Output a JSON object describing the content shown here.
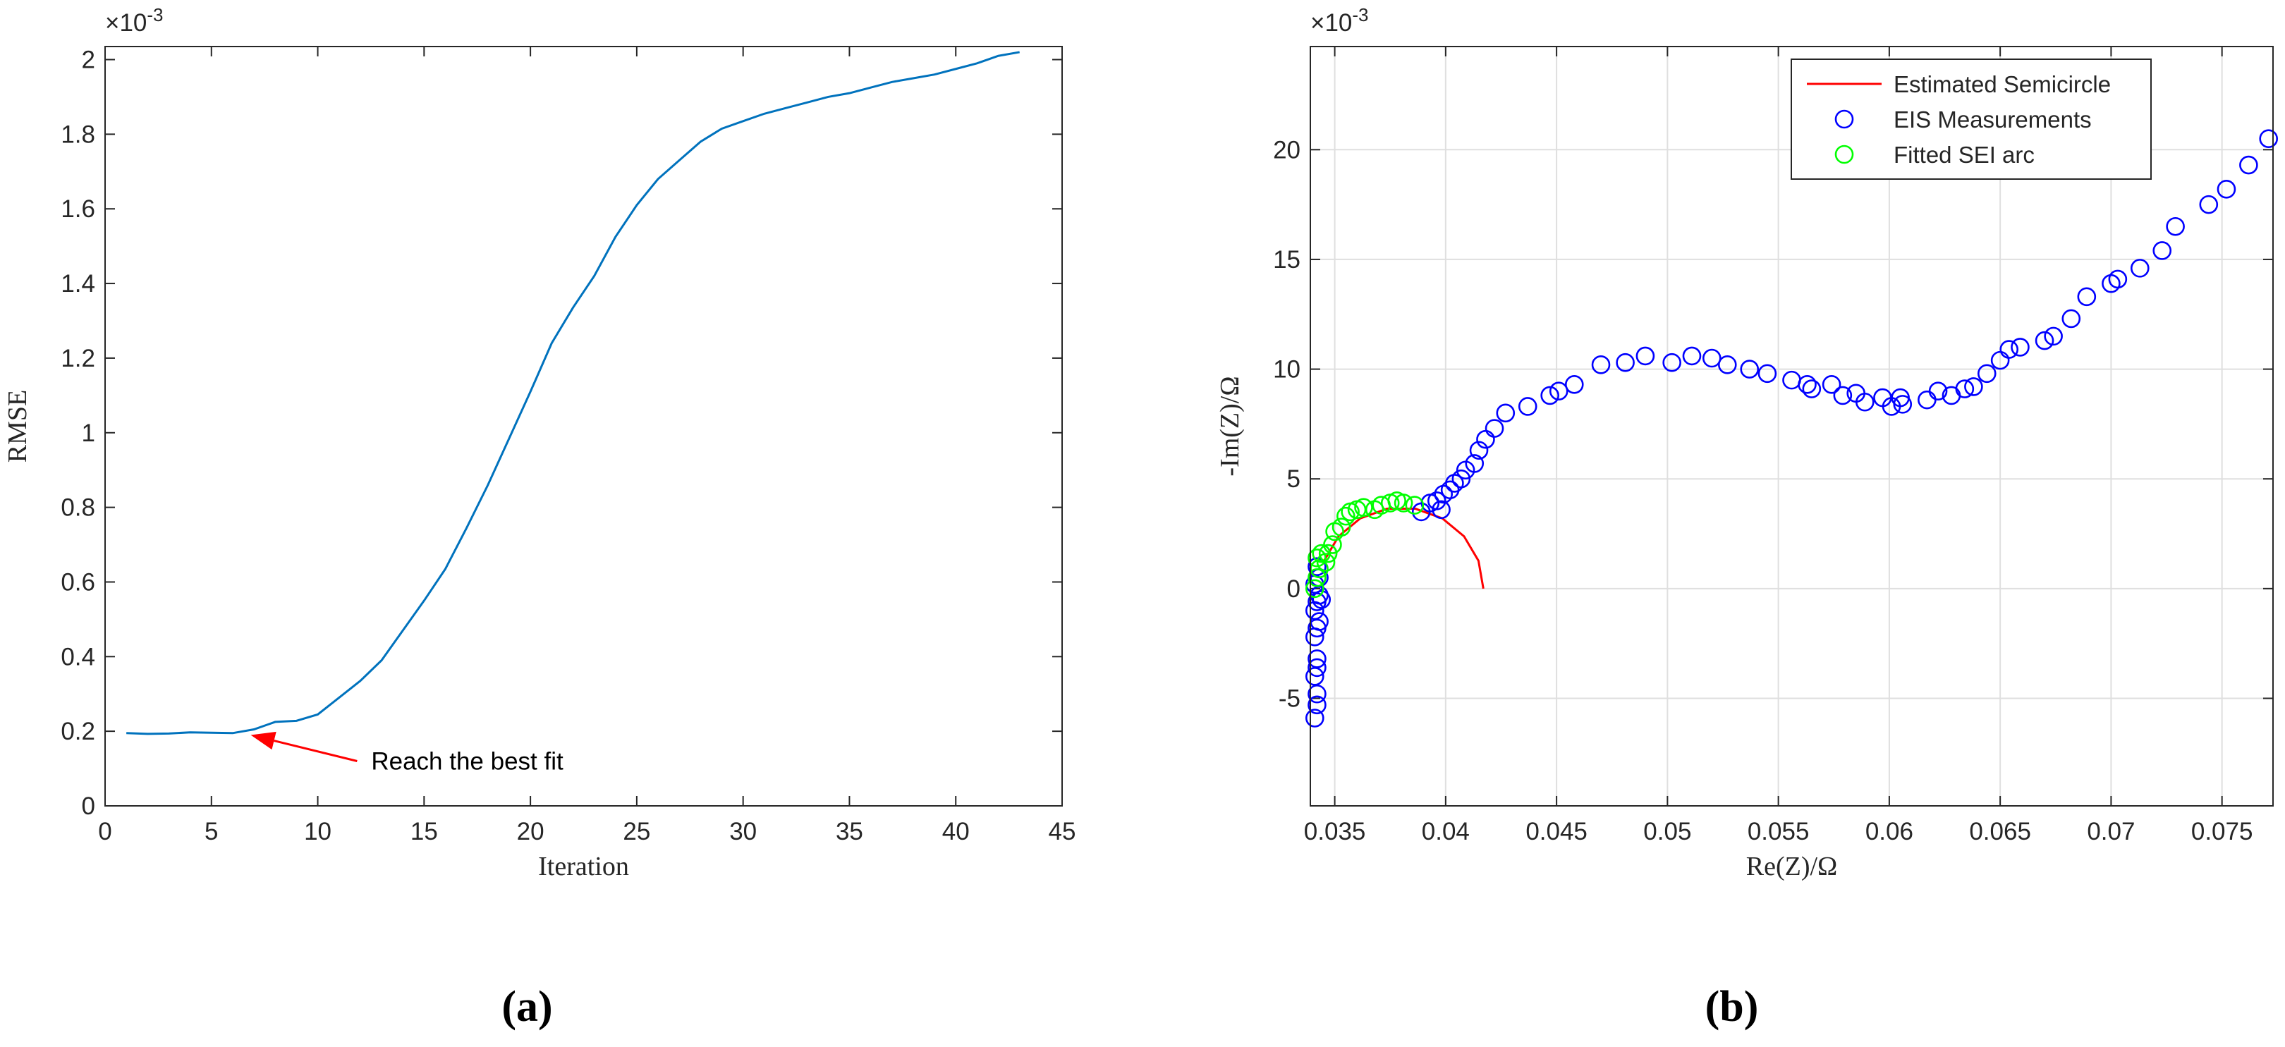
{
  "chart_data": [
    {
      "type": "line",
      "panel_label": "(a)",
      "x_label": "Iteration",
      "y_label": "RMSE",
      "y_exponent": {
        "base": "×10",
        "power": "-3"
      },
      "xlim": [
        0,
        45
      ],
      "xticks": [
        0,
        5,
        10,
        15,
        20,
        25,
        30,
        35,
        40,
        45
      ],
      "ylim": [
        0,
        2.035
      ],
      "yticks": [
        0,
        0.2,
        0.4,
        0.6,
        0.8,
        1,
        1.2,
        1.4,
        1.6,
        1.8,
        2
      ],
      "grid": false,
      "series": [
        {
          "mode": "line",
          "color": "#0072bd",
          "x": [
            1,
            2,
            3,
            4,
            5,
            6,
            7,
            8,
            9,
            10,
            11,
            12,
            13,
            14,
            15,
            16,
            17,
            18,
            19,
            20,
            21,
            22,
            23,
            24,
            25,
            26,
            27,
            28,
            29,
            30,
            31,
            32,
            33,
            34,
            35,
            36,
            37,
            38,
            39,
            40,
            41,
            42,
            43
          ],
          "values": [
            0.195,
            0.193,
            0.194,
            0.197,
            0.196,
            0.195,
            0.205,
            0.225,
            0.228,
            0.245,
            0.29,
            0.335,
            0.39,
            0.47,
            0.55,
            0.635,
            0.745,
            0.86,
            0.985,
            1.11,
            1.24,
            1.335,
            1.42,
            1.525,
            1.61,
            1.68,
            1.73,
            1.78,
            1.815,
            1.835,
            1.855,
            1.87,
            1.885,
            1.9,
            1.91,
            1.925,
            1.94,
            1.95,
            1.96,
            1.975,
            1.99,
            2.01,
            2.02
          ]
        }
      ],
      "annotation": {
        "text": "Reach the best fit",
        "xy": [
          6.85,
          0.19
        ],
        "xytext": [
          11.85,
          0.12
        ],
        "color": "#ff0000"
      }
    },
    {
      "type": "scatter",
      "panel_label": "(b)",
      "x_label": "Re(Z)/Ω",
      "y_label": "-Im(Z)/Ω",
      "y_exponent": {
        "base": "×10",
        "power": "-3"
      },
      "xlim": [
        0.0339,
        0.0773
      ],
      "xticks": [
        0.035,
        0.04,
        0.045,
        0.05,
        0.055,
        0.06,
        0.065,
        0.07,
        0.075
      ],
      "ylim": [
        -9.9,
        24.7
      ],
      "yticks": [
        -5,
        0,
        5,
        10,
        15,
        20
      ],
      "grid": true,
      "legend": "northeast",
      "series": [
        {
          "name": "Estimated Semicircle",
          "mode": "line",
          "color": "#ff0000",
          "x": [
            0.0417,
            0.04148,
            0.04083,
            0.03985,
            0.03864,
            0.03736,
            0.03615,
            0.03517,
            0.03452
          ],
          "values": [
            0,
            1.27,
            2.38,
            3.2,
            3.64,
            3.64,
            3.2,
            2.38,
            1.27
          ]
        },
        {
          "name": "EIS Measurements",
          "mode": "marker",
          "color": "#0000ff",
          "x": [
            0.0341,
            0.0342,
            0.0342,
            0.0341,
            0.0342,
            0.0342,
            0.0341,
            0.0342,
            0.0343,
            0.0341,
            0.0342,
            0.0343,
            0.0344,
            0.0341,
            0.0343,
            0.0342,
            0.0389,
            0.0393,
            0.0396,
            0.0398,
            0.0399,
            0.0402,
            0.0404,
            0.0407,
            0.0409,
            0.0413,
            0.0415,
            0.0418,
            0.0422,
            0.0427,
            0.0437,
            0.0447,
            0.0451,
            0.0458,
            0.047,
            0.0481,
            0.049,
            0.0502,
            0.0511,
            0.052,
            0.0527,
            0.0537,
            0.0545,
            0.0556,
            0.0563,
            0.0565,
            0.0574,
            0.0579,
            0.0585,
            0.0589,
            0.0597,
            0.0601,
            0.0605,
            0.0606,
            0.0617,
            0.0622,
            0.0628,
            0.0634,
            0.0638,
            0.0644,
            0.065,
            0.0654,
            0.0659,
            0.067,
            0.0674,
            0.0682,
            0.0689,
            0.07,
            0.0703,
            0.0713,
            0.0723,
            0.0729,
            0.0744,
            0.0752,
            0.0762,
            0.0771
          ],
          "values": [
            -5.9,
            -5.3,
            -4.8,
            -4.0,
            -3.6,
            -3.2,
            -2.2,
            -1.8,
            -1.5,
            -1.0,
            -0.6,
            -0.3,
            -0.5,
            0.2,
            0.5,
            1.0,
            3.5,
            3.9,
            4.0,
            3.6,
            4.3,
            4.5,
            4.8,
            5.0,
            5.4,
            5.7,
            6.3,
            6.8,
            7.3,
            8.0,
            8.3,
            8.8,
            9.0,
            9.3,
            10.2,
            10.3,
            10.6,
            10.3,
            10.6,
            10.5,
            10.2,
            10.0,
            9.8,
            9.5,
            9.3,
            9.1,
            9.3,
            8.8,
            8.9,
            8.5,
            8.7,
            8.3,
            8.7,
            8.4,
            8.6,
            9.0,
            8.8,
            9.1,
            9.2,
            9.8,
            10.4,
            10.9,
            11.0,
            11.3,
            11.5,
            12.3,
            13.3,
            13.9,
            14.1,
            14.6,
            15.4,
            16.5,
            17.5,
            18.2,
            19.3,
            20.5
          ]
        },
        {
          "name": "Fitted SEI arc",
          "mode": "marker",
          "color": "#00ff00",
          "x": [
            0.0341,
            0.0342,
            0.0343,
            0.0342,
            0.0344,
            0.0346,
            0.0347,
            0.0349,
            0.035,
            0.0353,
            0.0355,
            0.0357,
            0.036,
            0.0363,
            0.0368,
            0.0371,
            0.0375,
            0.0378,
            0.0381,
            0.0386
          ],
          "values": [
            0.0,
            0.5,
            0.9,
            1.4,
            1.6,
            1.2,
            1.6,
            2.0,
            2.6,
            2.8,
            3.3,
            3.5,
            3.6,
            3.7,
            3.6,
            3.8,
            3.9,
            4.0,
            3.9,
            3.8
          ]
        }
      ]
    }
  ]
}
